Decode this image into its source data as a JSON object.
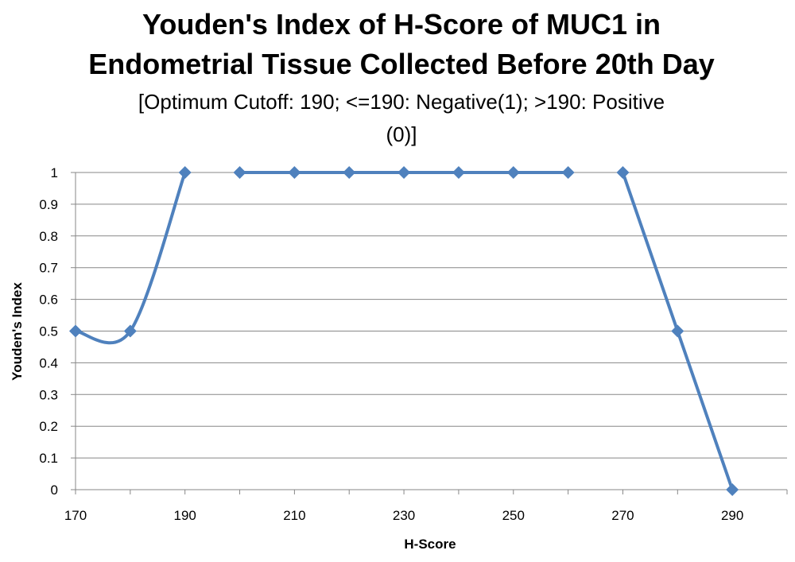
{
  "chart_data": {
    "type": "line",
    "title": [
      "Youden's Index of H-Score of MUC1 in",
      "Endometrial Tissue Collected Before 20th Day"
    ],
    "subtitle": [
      "[Optimum Cutoff: 190; <=190: Negative(1); >190: Positive",
      "(0)]"
    ],
    "xlabel": "H-Score",
    "ylabel": "Youden's Index",
    "xlim": [
      170,
      300
    ],
    "ylim": [
      0,
      1
    ],
    "x_ticks": [
      "170",
      "190",
      "210",
      "230",
      "250",
      "270",
      "290"
    ],
    "y_ticks": [
      "0",
      "0.1",
      "0.2",
      "0.3",
      "0.4",
      "0.5",
      "0.6",
      "0.7",
      "0.8",
      "0.9",
      "1"
    ],
    "grid": "horizontal",
    "legend": "none",
    "smoothed": true,
    "series": [
      {
        "color": "#4F81BD",
        "marker": "diamond",
        "segments": [
          [
            {
              "x": 170,
              "y": 0.5
            },
            {
              "x": 180,
              "y": 0.5
            },
            {
              "x": 190,
              "y": 1
            }
          ],
          [
            {
              "x": 200,
              "y": 1
            },
            {
              "x": 210,
              "y": 1
            },
            {
              "x": 220,
              "y": 1
            },
            {
              "x": 230,
              "y": 1
            },
            {
              "x": 240,
              "y": 1
            },
            {
              "x": 250,
              "y": 1
            },
            {
              "x": 260,
              "y": 1
            }
          ],
          [
            {
              "x": 270,
              "y": 1
            },
            {
              "x": 280,
              "y": 0.5
            },
            {
              "x": 290,
              "y": 0
            }
          ]
        ]
      }
    ]
  }
}
